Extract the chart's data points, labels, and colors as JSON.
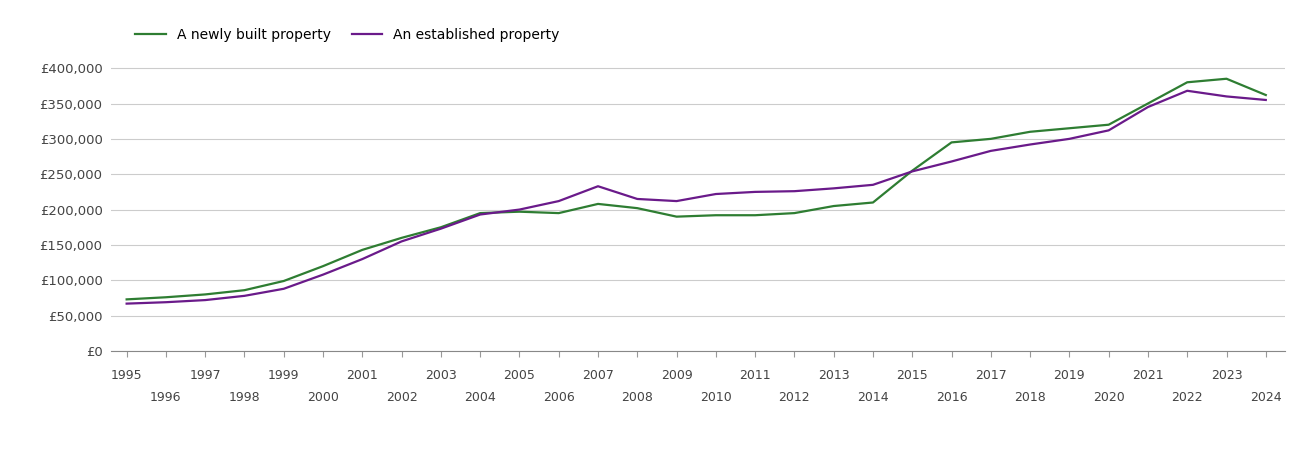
{
  "legend_new": "A newly built property",
  "legend_established": "An established property",
  "color_new": "#2e7d32",
  "color_established": "#6a1a8a",
  "line_width": 1.6,
  "ylim": [
    0,
    420000
  ],
  "yticks": [
    0,
    50000,
    100000,
    150000,
    200000,
    250000,
    300000,
    350000,
    400000
  ],
  "years_new": [
    1995,
    1996,
    1997,
    1998,
    1999,
    2000,
    2001,
    2002,
    2003,
    2004,
    2005,
    2006,
    2007,
    2008,
    2009,
    2010,
    2011,
    2012,
    2013,
    2014,
    2015,
    2016,
    2017,
    2018,
    2019,
    2020,
    2021,
    2022,
    2023,
    2024
  ],
  "values_new": [
    73000,
    76000,
    80000,
    86000,
    99000,
    120000,
    143000,
    160000,
    175000,
    195000,
    197000,
    195000,
    208000,
    202000,
    190000,
    192000,
    192000,
    195000,
    205000,
    210000,
    255000,
    295000,
    300000,
    310000,
    315000,
    320000,
    350000,
    380000,
    385000,
    362000
  ],
  "years_est": [
    1995,
    1996,
    1997,
    1998,
    1999,
    2000,
    2001,
    2002,
    2003,
    2004,
    2005,
    2006,
    2007,
    2008,
    2009,
    2010,
    2011,
    2012,
    2013,
    2014,
    2015,
    2016,
    2017,
    2018,
    2019,
    2020,
    2021,
    2022,
    2023,
    2024
  ],
  "values_est": [
    67000,
    69000,
    72000,
    78000,
    88000,
    108000,
    130000,
    155000,
    173000,
    193000,
    200000,
    212000,
    233000,
    215000,
    212000,
    222000,
    225000,
    226000,
    230000,
    235000,
    254000,
    268000,
    283000,
    292000,
    300000,
    312000,
    345000,
    368000,
    360000,
    355000
  ],
  "xtick_odd": [
    1995,
    1997,
    1999,
    2001,
    2003,
    2005,
    2007,
    2009,
    2011,
    2013,
    2015,
    2017,
    2019,
    2021,
    2023
  ],
  "xtick_even": [
    1996,
    1998,
    2000,
    2002,
    2004,
    2006,
    2008,
    2010,
    2012,
    2014,
    2016,
    2018,
    2020,
    2022,
    2024
  ],
  "background_color": "#ffffff",
  "grid_color": "#cccccc"
}
